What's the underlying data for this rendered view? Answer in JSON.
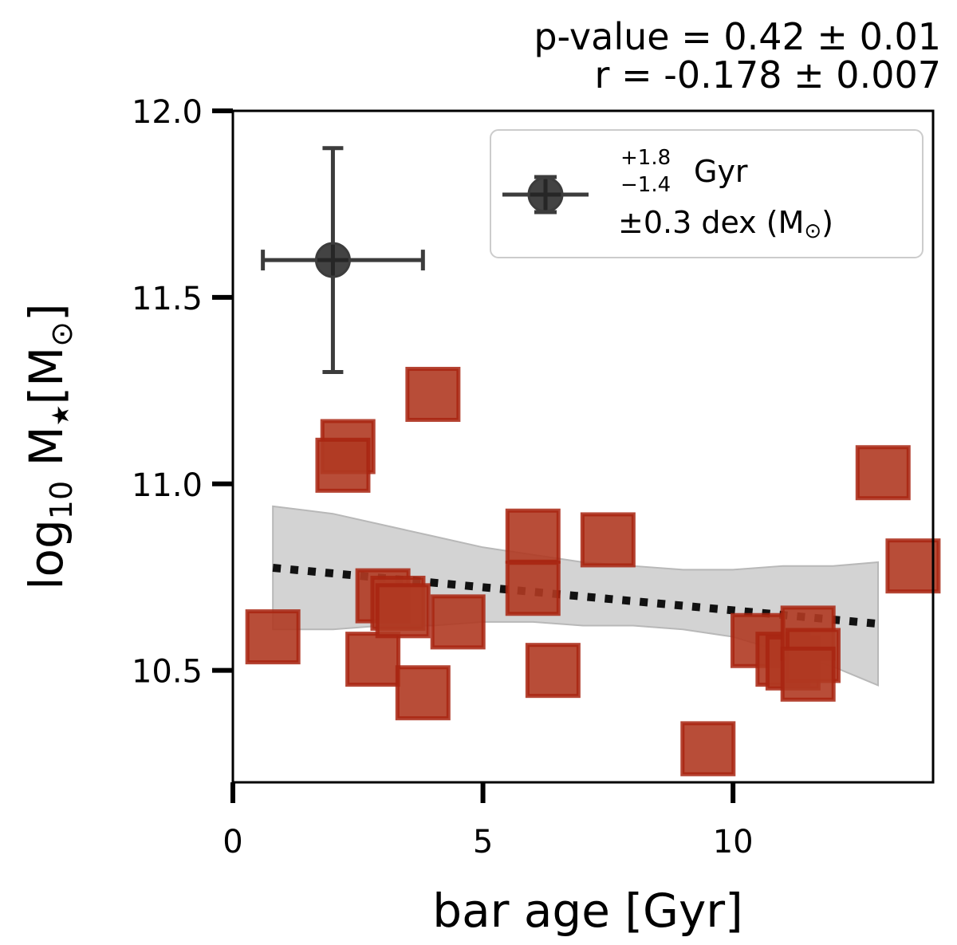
{
  "chart_data": {
    "type": "scatter",
    "title": "",
    "stats": {
      "p_value": "p-value = 0.42 ± 0.01",
      "r": "r = -0.178 ± 0.007"
    },
    "xlabel": "bar age [Gyr]",
    "ylabel": {
      "prefix": "log",
      "sub": "10",
      "mid": " M",
      "star": "★",
      "bracket_open": "[M",
      "sun": "⊙",
      "bracket_close": "]"
    },
    "xlim": [
      0,
      14
    ],
    "ylim": [
      10.2,
      12.0
    ],
    "xticks": [
      {
        "value": 0,
        "label": "0"
      },
      {
        "value": 5,
        "label": "5"
      },
      {
        "value": 10,
        "label": "10"
      }
    ],
    "yticks": [
      {
        "value": 10.5,
        "label": "10.5"
      },
      {
        "value": 11.0,
        "label": "11.0"
      },
      {
        "value": 11.5,
        "label": "11.5"
      },
      {
        "value": 12.0,
        "label": "12.0"
      }
    ],
    "points": [
      {
        "x": 0.8,
        "y": 10.59
      },
      {
        "x": 2.3,
        "y": 11.1
      },
      {
        "x": 2.2,
        "y": 11.05
      },
      {
        "x": 4.0,
        "y": 11.24
      },
      {
        "x": 2.8,
        "y": 10.53
      },
      {
        "x": 3.0,
        "y": 10.7
      },
      {
        "x": 3.3,
        "y": 10.68
      },
      {
        "x": 3.4,
        "y": 10.66
      },
      {
        "x": 3.8,
        "y": 10.44
      },
      {
        "x": 4.5,
        "y": 10.63
      },
      {
        "x": 6.0,
        "y": 10.86
      },
      {
        "x": 6.0,
        "y": 10.72
      },
      {
        "x": 6.4,
        "y": 10.5
      },
      {
        "x": 7.5,
        "y": 10.85
      },
      {
        "x": 9.5,
        "y": 10.29
      },
      {
        "x": 10.5,
        "y": 10.58
      },
      {
        "x": 11.0,
        "y": 10.53
      },
      {
        "x": 11.2,
        "y": 10.52
      },
      {
        "x": 11.5,
        "y": 10.6
      },
      {
        "x": 11.6,
        "y": 10.54
      },
      {
        "x": 11.5,
        "y": 10.49
      },
      {
        "x": 13.0,
        "y": 11.03
      },
      {
        "x": 13.6,
        "y": 10.78
      }
    ],
    "fit_line": {
      "x": [
        0.8,
        12.9
      ],
      "y": [
        10.775,
        10.625
      ]
    },
    "confidence_band": {
      "x": [
        0.8,
        2.0,
        3.0,
        4.0,
        5.0,
        6.0,
        7.0,
        8.0,
        9.0,
        10.0,
        11.0,
        12.0,
        12.9
      ],
      "upper": [
        10.94,
        10.92,
        10.89,
        10.86,
        10.83,
        10.81,
        10.79,
        10.78,
        10.77,
        10.77,
        10.78,
        10.78,
        10.79
      ],
      "lower": [
        10.61,
        10.61,
        10.62,
        10.62,
        10.63,
        10.63,
        10.62,
        10.62,
        10.61,
        10.59,
        10.55,
        10.51,
        10.46
      ]
    },
    "error_example": {
      "x": 2.0,
      "y": 11.6,
      "xerr_minus": 1.4,
      "xerr_plus": 1.8,
      "yerr": 0.3
    },
    "legend": {
      "position": "top-right",
      "sup": "+1.8",
      "sub": "−1.4",
      "unit": "Gyr",
      "line2": "±0.3 dex (M",
      "sun": "⊙",
      "close": ")"
    },
    "colors": {
      "marker_fill": "#b03a22",
      "marker_edge": "#a82410",
      "band": "#c8c8c8",
      "fit": "#111111",
      "errorbar": "#3c3c3c"
    }
  }
}
